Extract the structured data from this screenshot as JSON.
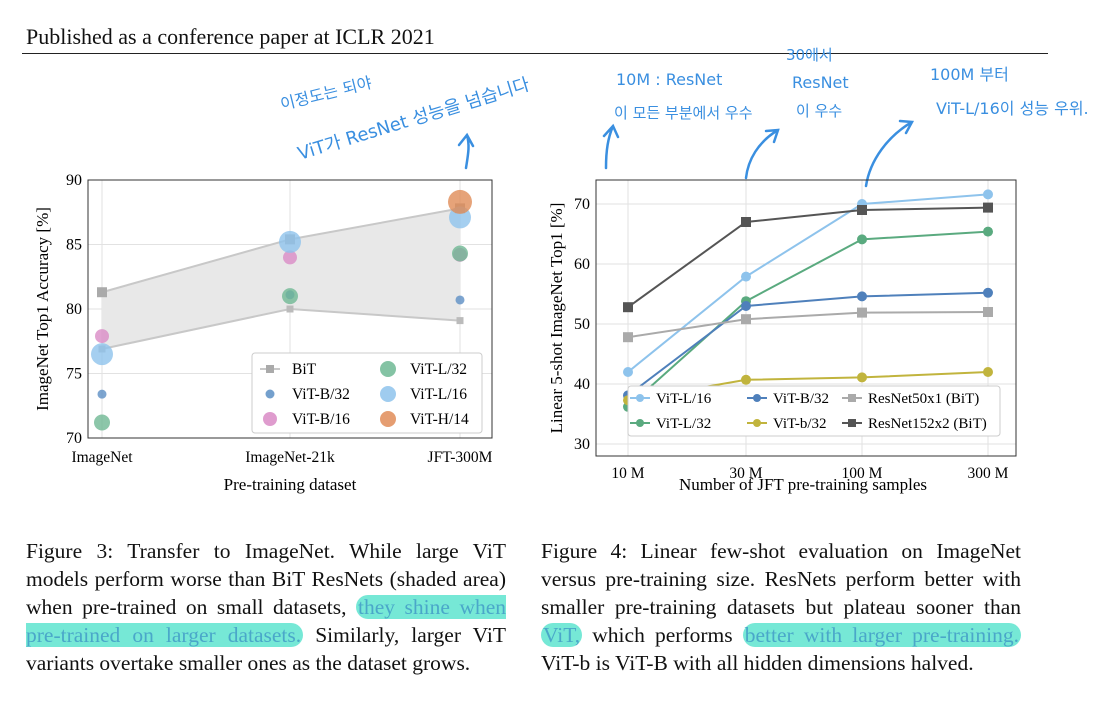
{
  "header": "Published as a conference paper at ICLR 2021",
  "annotations": {
    "left_line1": "이정도는 되야",
    "left_line2": "ViT가 ResNet 성능을 넘습니다",
    "mid1_line1": "10M : ResNet",
    "mid1_line2": "이 모든 부분에서 우수",
    "mid2_line1": "30에서",
    "mid2_line2": "ResNet",
    "mid2_line3": "이 우수",
    "right_line1": "100M 부터",
    "right_line2": "ViT-L/16이 성능 우위."
  },
  "chart_data": [
    {
      "type": "scatter",
      "ylabel": "ImageNet Top1 Accuracy [%]",
      "xlabel": "Pre-training dataset",
      "categories": [
        "ImageNet",
        "ImageNet-21k",
        "JFT-300M"
      ],
      "ylim": [
        70,
        90
      ],
      "yticks": [
        "70",
        "75",
        "80",
        "85",
        "90"
      ],
      "grid": true,
      "legend_position": "bottom-right",
      "bit_upper": [
        81.3,
        85.4,
        87.8
      ],
      "bit_lower": [
        76.9,
        80.0,
        79.1
      ],
      "series": [
        {
          "name": "BiT",
          "color": "#aaaaaa",
          "values": [
            81.3,
            85.4,
            87.8
          ]
        },
        {
          "name": "ViT-B/32",
          "color": "#5c8fc4",
          "values": [
            73.4,
            81.1,
            80.7
          ]
        },
        {
          "name": "ViT-B/16",
          "color": "#d98bc5",
          "values": [
            77.9,
            84.0,
            84.2
          ]
        },
        {
          "name": "ViT-L/32",
          "color": "#6fb894",
          "values": [
            71.2,
            81.0,
            84.3
          ]
        },
        {
          "name": "ViT-L/16",
          "color": "#8ec3ec",
          "values": [
            76.5,
            85.2,
            87.1
          ]
        },
        {
          "name": "ViT-H/14",
          "color": "#e08c58",
          "values": [
            null,
            null,
            88.3
          ]
        }
      ]
    },
    {
      "type": "line",
      "ylabel": "Linear 5-shot ImageNet Top1 [%]",
      "xlabel": "Number of JFT pre-training samples",
      "x": [
        "10 M",
        "30 M",
        "100 M",
        "300 M"
      ],
      "ylim": [
        28,
        74
      ],
      "yticks": [
        "30",
        "40",
        "50",
        "60",
        "70"
      ],
      "grid": true,
      "legend_position": "bottom-right",
      "series": [
        {
          "name": "ViT-L/16",
          "color": "#8ec3ec",
          "marker": "circle",
          "values": [
            42.0,
            57.9,
            70.0,
            71.6
          ]
        },
        {
          "name": "ViT-L/32",
          "color": "#5aaa7f",
          "marker": "circle",
          "values": [
            36.2,
            53.8,
            64.1,
            65.4
          ]
        },
        {
          "name": "ViT-B/32",
          "color": "#4f80bb",
          "marker": "circle",
          "values": [
            38.1,
            53.0,
            54.6,
            55.2
          ]
        },
        {
          "name": "ViT-b/32",
          "color": "#c1b43d",
          "marker": "circle",
          "values": [
            37.3,
            40.7,
            41.1,
            42.0
          ]
        },
        {
          "name": "ResNet50x1 (BiT)",
          "color": "#aaaaaa",
          "marker": "square",
          "values": [
            47.8,
            50.8,
            51.9,
            52.0
          ]
        },
        {
          "name": "ResNet152x2 (BiT)",
          "color": "#555555",
          "marker": "square",
          "values": [
            52.8,
            67.0,
            69.0,
            69.4
          ]
        }
      ]
    }
  ],
  "captions": {
    "fig3": {
      "before": "Figure 3:  Transfer to ImageNet.  While large ViT models perform worse than BiT ResNets (shaded area) when pre-trained on small datasets, ",
      "highlight": "they shine when pre-trained on larger datasets.",
      "after": " Similarly, larger ViT variants overtake smaller ones as the dataset grows."
    },
    "fig4": {
      "before": "Figure 4: Linear few-shot evaluation on ImageNet versus pre-training size.  ResNets perform better with smaller pre-training datasets but plateau sooner than ",
      "highlight1": "ViT,",
      "middle": " which performs ",
      "highlight2": "better with larger pre-training.",
      "after": " ViT-b is ViT-B with all hidden dimensions halved."
    }
  }
}
